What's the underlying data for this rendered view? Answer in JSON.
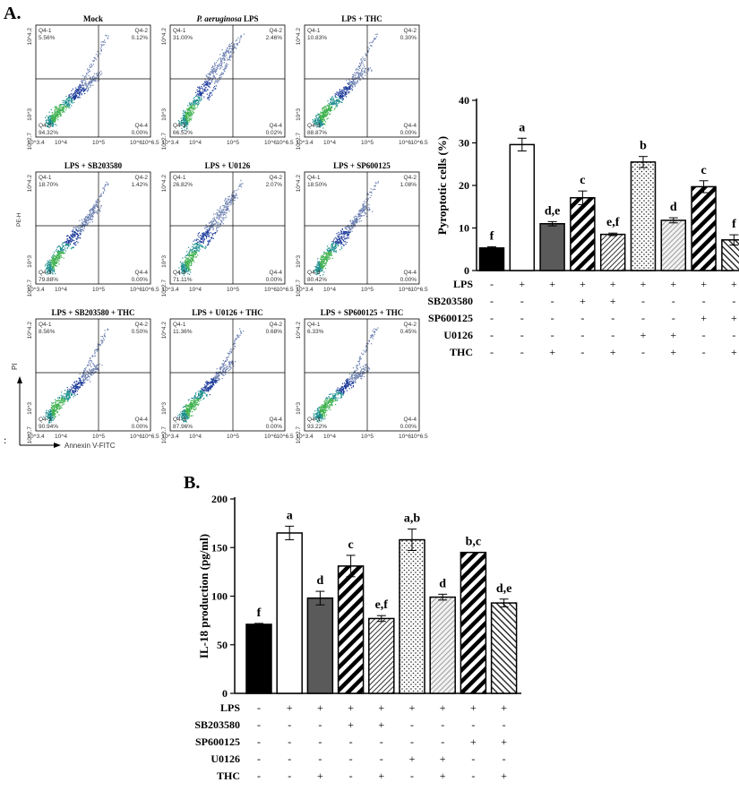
{
  "panels": {
    "a_label": "A.",
    "b_label": "B."
  },
  "flow": {
    "axis_y_label": "PI",
    "axis_x_label": "Annexin V-FITC",
    "pe_label": "PE-H",
    "stray_mark": ":",
    "tick_labels": {
      "x": [
        "10^3.4",
        "10^4",
        "10^5",
        "10^6",
        "10^6.5"
      ],
      "y": [
        "10^2.7",
        "10^3",
        "10^4.2"
      ]
    },
    "quadrant_names": [
      "Q4-1",
      "Q4-2",
      "Q4-3",
      "Q4-4"
    ],
    "plots": [
      {
        "title": "Mock",
        "title_pre": "",
        "q1": "5.56%",
        "q2": "0.12%",
        "q3": "94.32%",
        "q4": "0.00%"
      },
      {
        "title": " LPS",
        "title_pre": "P. aeruginosa",
        "q1": "31.00%",
        "q2": "2.46%",
        "q3": "66.52%",
        "q4": "0.02%"
      },
      {
        "title": "LPS + THC",
        "title_pre": "",
        "q1": "10.83%",
        "q2": "0.30%",
        "q3": "88.87%",
        "q4": "0.00%"
      },
      {
        "title": "LPS + SB203580",
        "title_pre": "",
        "q1": "18.70%",
        "q2": "1.42%",
        "q3": "79.88%",
        "q4": "0.00%"
      },
      {
        "title": "LPS + U0126",
        "title_pre": "",
        "q1": "26.82%",
        "q2": "2.07%",
        "q3": "71.11%",
        "q4": "0.00%"
      },
      {
        "title": "LPS + SP600125",
        "title_pre": "",
        "q1": "18.50%",
        "q2": "1.08%",
        "q3": "80.42%",
        "q4": "0.00%"
      },
      {
        "title": "LPS + SB203580 + THC",
        "title_pre": "",
        "q1": "8.56%",
        "q2": "0.50%",
        "q3": "90.94%",
        "q4": "0.00%"
      },
      {
        "title": "LPS + U0126 + THC",
        "title_pre": "",
        "q1": "11.36%",
        "q2": "0.68%",
        "q3": "87.96%",
        "q4": "0.00%"
      },
      {
        "title": "LPS + SP600125 + THC",
        "title_pre": "",
        "q1": "6.33%",
        "q2": "0.45%",
        "q3": "93.22%",
        "q4": "0.00%"
      }
    ]
  },
  "chart_data": [
    {
      "id": "pyroptosis",
      "type": "bar",
      "ylabel": "Pyroptotic cells (%)",
      "ylim": [
        0,
        40
      ],
      "yticks": [
        0,
        10,
        20,
        30,
        40
      ],
      "categories": [
        "1",
        "2",
        "3",
        "4",
        "5",
        "6",
        "7",
        "8",
        "9"
      ],
      "values": [
        5.3,
        29.6,
        11.0,
        17.1,
        8.5,
        25.5,
        11.8,
        19.7,
        7.2
      ],
      "errors": [
        0.3,
        1.5,
        0.5,
        1.6,
        0.3,
        1.3,
        0.6,
        1.4,
        1.2
      ],
      "letters": [
        "f",
        "a",
        "d,e",
        "c",
        "e,f",
        "b",
        "d",
        "c",
        "f"
      ],
      "fills": [
        "black",
        "white",
        "gray",
        "stripe-wide",
        "stripe-thin",
        "dots",
        "hatch-light",
        "stripe-wide",
        "stripe-back"
      ],
      "treatment_rows": [
        {
          "label": "LPS",
          "signs": [
            "-",
            "+",
            "+",
            "+",
            "+",
            "+",
            "+",
            "+",
            "+"
          ]
        },
        {
          "label": "SB203580",
          "signs": [
            "-",
            "-",
            "-",
            "+",
            "+",
            "-",
            "-",
            "-",
            "-"
          ]
        },
        {
          "label": "SP600125",
          "signs": [
            "-",
            "-",
            "-",
            "-",
            "-",
            "-",
            "-",
            "+",
            "+"
          ]
        },
        {
          "label": "U0126",
          "signs": [
            "-",
            "-",
            "-",
            "-",
            "-",
            "+",
            "+",
            "-",
            "-"
          ]
        },
        {
          "label": "THC",
          "signs": [
            "-",
            "-",
            "+",
            "-",
            "+",
            "-",
            "+",
            "-",
            "+"
          ]
        }
      ]
    },
    {
      "id": "il18",
      "type": "bar",
      "ylabel": "IL-18 production (pg/ml)",
      "ylim": [
        0,
        200
      ],
      "yticks": [
        0,
        50,
        100,
        150,
        200
      ],
      "categories": [
        "1",
        "2",
        "3",
        "4",
        "5",
        "6",
        "7",
        "8",
        "9"
      ],
      "values": [
        71,
        165,
        98,
        131,
        77,
        158,
        99,
        145,
        93
      ],
      "errors": [
        1,
        7,
        7,
        11,
        3,
        11,
        3,
        0,
        4
      ],
      "letters": [
        "f",
        "a",
        "d",
        "c",
        "e,f",
        "a,b",
        "d",
        "b,c",
        "d,e"
      ],
      "fills": [
        "black",
        "white",
        "gray",
        "stripe-wide",
        "stripe-thin",
        "dots",
        "hatch-light",
        "stripe-wide",
        "stripe-back"
      ],
      "treatment_rows": [
        {
          "label": "LPS",
          "signs": [
            "-",
            "+",
            "+",
            "+",
            "+",
            "+",
            "+",
            "+",
            "+"
          ]
        },
        {
          "label": "SB203580",
          "signs": [
            "-",
            "-",
            "-",
            "+",
            "+",
            "-",
            "-",
            "-",
            "-"
          ]
        },
        {
          "label": "SP600125",
          "signs": [
            "-",
            "-",
            "-",
            "-",
            "-",
            "-",
            "-",
            "+",
            "+"
          ]
        },
        {
          "label": "U0126",
          "signs": [
            "-",
            "-",
            "-",
            "-",
            "-",
            "+",
            "+",
            "-",
            "-"
          ]
        },
        {
          "label": "THC",
          "signs": [
            "-",
            "-",
            "+",
            "-",
            "+",
            "-",
            "+",
            "-",
            "+"
          ]
        }
      ]
    }
  ]
}
